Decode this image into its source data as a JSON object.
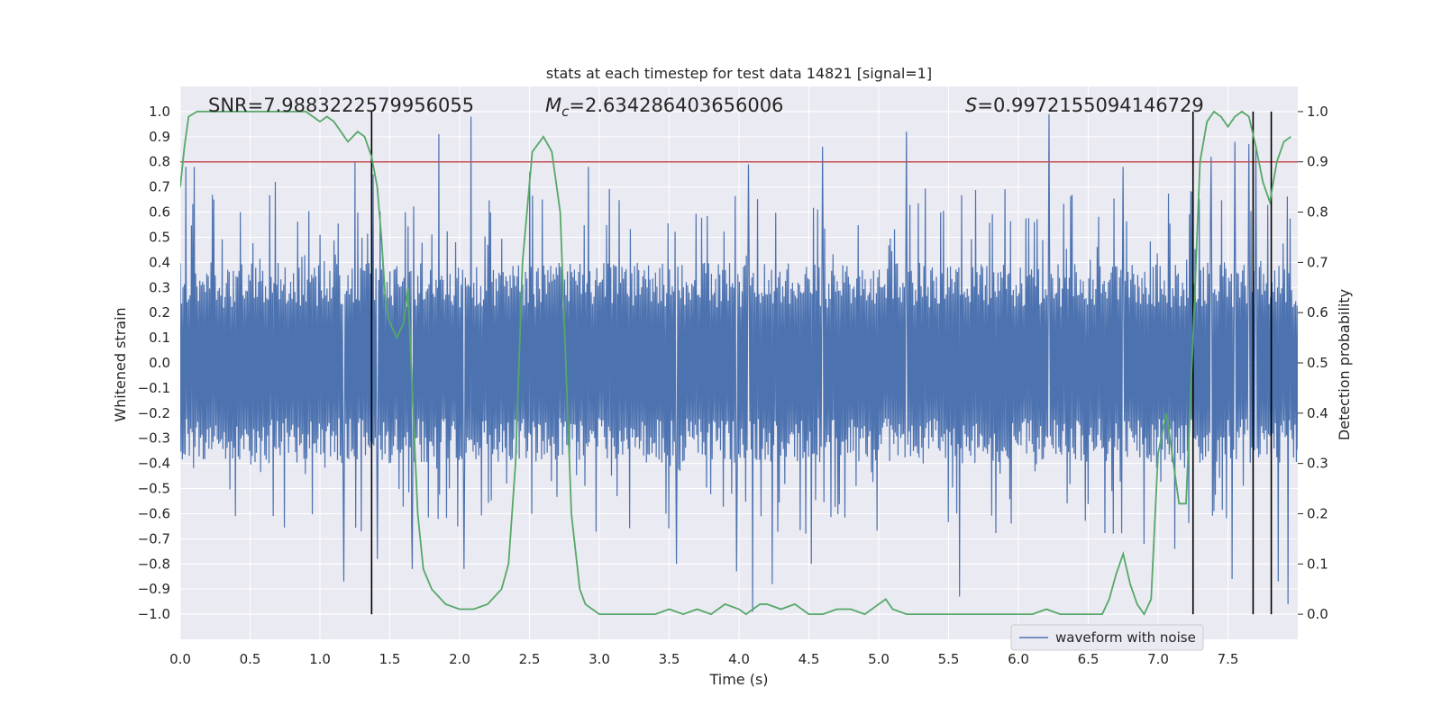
{
  "chart_data": {
    "type": "line",
    "title": "stats at each timestep for test data 14821 [signal=1]",
    "xlabel": "Time (s)",
    "ylabel": "Whitened strain",
    "ylabel_right": "Detection probability",
    "xlim": [
      0,
      8
    ],
    "ylim": [
      -1.1,
      1.1
    ],
    "ylim_right": [
      -0.05,
      1.05
    ],
    "x_ticks": [
      0.0,
      0.5,
      1.0,
      1.5,
      2.0,
      2.5,
      3.0,
      3.5,
      4.0,
      4.5,
      5.0,
      5.5,
      6.0,
      6.5,
      7.0,
      7.5
    ],
    "x_tick_labels": [
      "0.0",
      "0.5",
      "1.0",
      "1.5",
      "2.0",
      "2.5",
      "3.0",
      "3.5",
      "4.0",
      "4.5",
      "5.0",
      "5.5",
      "6.0",
      "6.5",
      "7.0",
      "7.5"
    ],
    "y_ticks": [
      1.0,
      0.9,
      0.8,
      0.7,
      0.6,
      0.5,
      0.4,
      0.3,
      0.2,
      0.1,
      0.0,
      -0.1,
      -0.2,
      -0.3,
      -0.4,
      -0.5,
      -0.6,
      -0.7,
      -0.8,
      -0.9,
      -1.0
    ],
    "y_tick_labels": [
      "1.0",
      "0.9",
      "0.8",
      "0.7",
      "0.6",
      "0.5",
      "0.4",
      "0.3",
      "0.2",
      "0.1",
      "0.0",
      "−0.1",
      "−0.2",
      "−0.3",
      "−0.4",
      "−0.5",
      "−0.6",
      "−0.7",
      "−0.8",
      "−0.9",
      "−1.0"
    ],
    "y_right_ticks": [
      1.0,
      0.9,
      0.8,
      0.7,
      0.6,
      0.5,
      0.4,
      0.3,
      0.2,
      0.1,
      0.0
    ],
    "y_right_tick_labels": [
      "1.0",
      "0.9",
      "0.8",
      "0.7",
      "0.6",
      "0.5",
      "0.4",
      "0.3",
      "0.2",
      "0.1",
      "0.0"
    ],
    "annotations": {
      "snr": "SNR=7.9883222579956055",
      "mc_symbol": "M",
      "mc_sub": "c",
      "mc_value": "=2.634286403656006",
      "s_symbol": "S",
      "s_value": "=0.9972155094146729"
    },
    "threshold": {
      "value": 0.9,
      "axis": "right",
      "color": "#c44e52"
    },
    "vertical_lines": [
      1.37,
      7.25,
      7.68,
      7.81
    ],
    "waveform": {
      "name": "waveform with noise",
      "color": "#4c72b0",
      "samples": 1600,
      "envelope_typical": 0.4,
      "peaks": [
        {
          "t": 0.04,
          "v": 0.78
        },
        {
          "t": 0.1,
          "v": 0.78
        },
        {
          "t": 0.24,
          "v": 0.65
        },
        {
          "t": 0.43,
          "v": 0.6
        },
        {
          "t": 0.68,
          "v": 0.72
        },
        {
          "t": 1.17,
          "v": -0.87
        },
        {
          "t": 1.25,
          "v": 0.8
        },
        {
          "t": 1.38,
          "v": 0.75
        },
        {
          "t": 1.41,
          "v": -0.78
        },
        {
          "t": 1.66,
          "v": -0.82
        },
        {
          "t": 1.85,
          "v": 0.91
        },
        {
          "t": 2.08,
          "v": 0.98
        },
        {
          "t": 2.03,
          "v": -0.82
        },
        {
          "t": 2.5,
          "v": 0.76
        },
        {
          "t": 2.92,
          "v": 0.78
        },
        {
          "t": 3.55,
          "v": -0.8
        },
        {
          "t": 3.98,
          "v": -0.83
        },
        {
          "t": 4.07,
          "v": 0.79
        },
        {
          "t": 4.1,
          "v": -0.99
        },
        {
          "t": 4.24,
          "v": -0.88
        },
        {
          "t": 4.52,
          "v": -0.8
        },
        {
          "t": 4.6,
          "v": 0.86
        },
        {
          "t": 5.2,
          "v": 0.92
        },
        {
          "t": 5.58,
          "v": -0.93
        },
        {
          "t": 6.22,
          "v": 0.99
        },
        {
          "t": 6.75,
          "v": 0.78
        },
        {
          "t": 7.38,
          "v": 0.82
        },
        {
          "t": 7.55,
          "v": 0.88
        },
        {
          "t": 7.53,
          "v": -0.86
        },
        {
          "t": 7.65,
          "v": 0.87
        },
        {
          "t": 7.7,
          "v": 0.86
        },
        {
          "t": 7.86,
          "v": -0.87
        },
        {
          "t": 7.93,
          "v": -0.96
        },
        {
          "t": 7.12,
          "v": -0.74
        },
        {
          "t": 6.9,
          "v": -0.72
        }
      ]
    },
    "probability": {
      "name": "detection probability",
      "color": "#55a868",
      "x": [
        0.0,
        0.03,
        0.06,
        0.12,
        0.2,
        0.3,
        0.4,
        0.5,
        0.6,
        0.7,
        0.8,
        0.9,
        0.95,
        1.0,
        1.05,
        1.1,
        1.15,
        1.2,
        1.27,
        1.32,
        1.37,
        1.41,
        1.44,
        1.47,
        1.5,
        1.55,
        1.6,
        1.63,
        1.66,
        1.7,
        1.74,
        1.8,
        1.9,
        2.0,
        2.1,
        2.2,
        2.3,
        2.35,
        2.4,
        2.45,
        2.52,
        2.6,
        2.66,
        2.72,
        2.8,
        2.86,
        2.9,
        3.0,
        3.1,
        3.2,
        3.3,
        3.4,
        3.5,
        3.6,
        3.7,
        3.8,
        3.9,
        4.0,
        4.05,
        4.1,
        4.15,
        4.2,
        4.3,
        4.4,
        4.5,
        4.6,
        4.7,
        4.8,
        4.9,
        5.0,
        5.05,
        5.1,
        5.2,
        5.3,
        5.4,
        5.5,
        5.6,
        5.7,
        5.8,
        5.9,
        6.0,
        6.1,
        6.2,
        6.3,
        6.4,
        6.5,
        6.6,
        6.65,
        6.7,
        6.75,
        6.8,
        6.85,
        6.9,
        6.95,
        7.0,
        7.06,
        7.1,
        7.15,
        7.2,
        7.25,
        7.3,
        7.35,
        7.4,
        7.45,
        7.5,
        7.55,
        7.6,
        7.65,
        7.7,
        7.75,
        7.8,
        7.85,
        7.9,
        7.95
      ],
      "y": [
        0.85,
        0.93,
        0.99,
        1.0,
        1.0,
        1.0,
        1.0,
        1.0,
        1.0,
        1.0,
        1.0,
        1.0,
        0.99,
        0.98,
        0.99,
        0.98,
        0.96,
        0.94,
        0.96,
        0.95,
        0.91,
        0.85,
        0.75,
        0.62,
        0.58,
        0.55,
        0.58,
        0.65,
        0.45,
        0.2,
        0.09,
        0.05,
        0.02,
        0.01,
        0.01,
        0.02,
        0.05,
        0.1,
        0.3,
        0.7,
        0.92,
        0.95,
        0.92,
        0.8,
        0.2,
        0.05,
        0.02,
        0.0,
        0.0,
        0.0,
        0.0,
        0.0,
        0.01,
        0.0,
        0.01,
        0.0,
        0.02,
        0.01,
        0.0,
        0.01,
        0.02,
        0.02,
        0.01,
        0.02,
        0.0,
        0.0,
        0.01,
        0.01,
        0.0,
        0.02,
        0.03,
        0.01,
        0.0,
        0.0,
        0.0,
        0.0,
        0.0,
        0.0,
        0.0,
        0.0,
        0.0,
        0.0,
        0.01,
        0.0,
        0.0,
        0.0,
        0.0,
        0.03,
        0.08,
        0.12,
        0.06,
        0.02,
        0.0,
        0.03,
        0.32,
        0.4,
        0.32,
        0.22,
        0.22,
        0.55,
        0.9,
        0.98,
        1.0,
        0.99,
        0.97,
        0.99,
        1.0,
        0.99,
        0.93,
        0.86,
        0.82,
        0.9,
        0.94,
        0.95
      ]
    },
    "legend": {
      "entries": [
        "waveform with noise"
      ],
      "placement": "lower-right"
    }
  }
}
